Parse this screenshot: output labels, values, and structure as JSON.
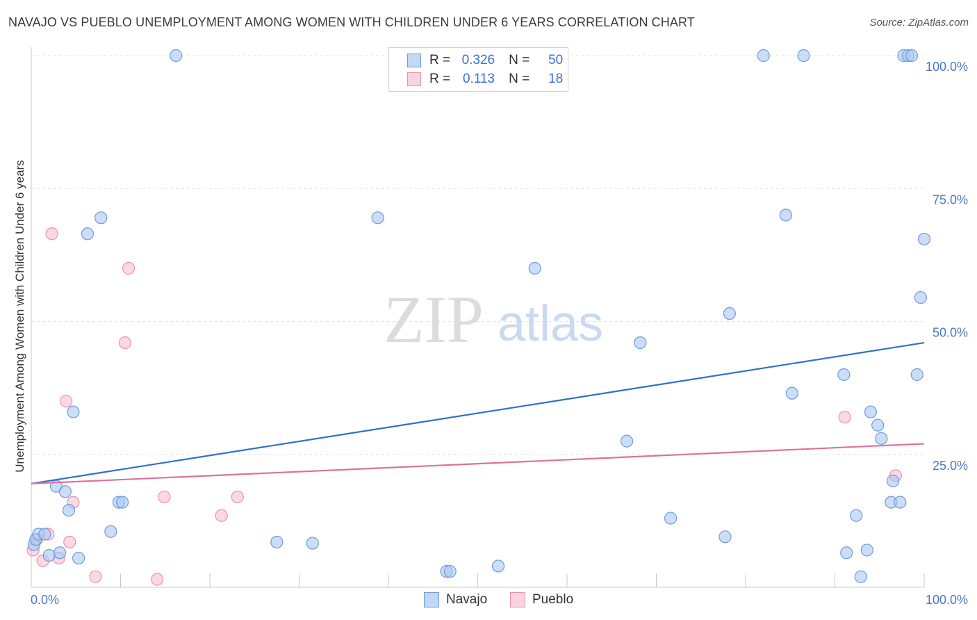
{
  "title": "NAVAJO VS PUEBLO UNEMPLOYMENT AMONG WOMEN WITH CHILDREN UNDER 6 YEARS CORRELATION CHART",
  "source": "Source: ZipAtlas.com",
  "legend": {
    "rows": [
      {
        "r_label": "R =",
        "r_value": "0.326",
        "n_label": "N =",
        "n_value": "50"
      },
      {
        "r_label": "R =",
        "r_value": "0.113",
        "n_label": "N =",
        "n_value": "18"
      }
    ]
  },
  "bottom_legend": {
    "navajo": "Navajo",
    "pueblo": "Pueblo"
  },
  "watermark": {
    "zip": "ZIP",
    "atlas": "atlas"
  },
  "colors": {
    "navajo_fill": "#aac8f0",
    "navajo_stroke": "#6b9be0",
    "navajo_line": "#2f6fd0",
    "pueblo_fill": "#f8c0d0",
    "pueblo_stroke": "#ec90ac",
    "pueblo_line": "#e0709a",
    "grid": "#e3e3e3",
    "axis": "#c8c8c8"
  },
  "chart_data": {
    "type": "scatter",
    "title": "NAVAJO VS PUEBLO UNEMPLOYMENT AMONG WOMEN WITH CHILDREN UNDER 6 YEARS CORRELATION CHART",
    "xlabel": "",
    "ylabel": "Unemployment Among Women with Children Under 6 years",
    "xlim": [
      0,
      100
    ],
    "ylim": [
      0,
      100
    ],
    "x_tick_labels": [
      "0.0%",
      "100.0%"
    ],
    "y_ticks": [
      25,
      50,
      75,
      100
    ],
    "y_tick_labels": [
      "25.0%",
      "50.0%",
      "75.0%",
      "100.0%"
    ],
    "series": [
      {
        "name": "Navajo",
        "R": 0.326,
        "N": 50,
        "trend": {
          "x": [
            0,
            100
          ],
          "y": [
            19.5,
            46
          ]
        },
        "points": [
          [
            0.3,
            8
          ],
          [
            0.5,
            9
          ],
          [
            0.8,
            10
          ],
          [
            1.5,
            10
          ],
          [
            2.0,
            6
          ],
          [
            2.8,
            19
          ],
          [
            3.2,
            6.5
          ],
          [
            3.8,
            18
          ],
          [
            4.2,
            14.5
          ],
          [
            4.7,
            33
          ],
          [
            5.3,
            5.5
          ],
          [
            6.3,
            66.5
          ],
          [
            7.8,
            69.5
          ],
          [
            8.9,
            10.5
          ],
          [
            9.8,
            16
          ],
          [
            10.2,
            16
          ],
          [
            16.2,
            100
          ],
          [
            27.5,
            8.5
          ],
          [
            31.5,
            8.3
          ],
          [
            38.8,
            69.5
          ],
          [
            46.5,
            3
          ],
          [
            46.9,
            3
          ],
          [
            52.3,
            4
          ],
          [
            56.4,
            60
          ],
          [
            66.7,
            27.5
          ],
          [
            68.2,
            46
          ],
          [
            71.6,
            13
          ],
          [
            77.7,
            9.5
          ],
          [
            78.2,
            51.5
          ],
          [
            82.0,
            100
          ],
          [
            84.5,
            70
          ],
          [
            85.2,
            36.5
          ],
          [
            86.5,
            100
          ],
          [
            91.0,
            40
          ],
          [
            91.3,
            6.5
          ],
          [
            92.4,
            13.5
          ],
          [
            92.9,
            2
          ],
          [
            93.6,
            7
          ],
          [
            94.0,
            33
          ],
          [
            94.8,
            30.5
          ],
          [
            95.2,
            28
          ],
          [
            96.3,
            16
          ],
          [
            96.5,
            20
          ],
          [
            97.3,
            16
          ],
          [
            97.7,
            100
          ],
          [
            98.2,
            100
          ],
          [
            98.6,
            100
          ],
          [
            99.2,
            40
          ],
          [
            99.6,
            54.5
          ],
          [
            100.0,
            65.5
          ]
        ]
      },
      {
        "name": "Pueblo",
        "R": 0.113,
        "N": 18,
        "trend": {
          "x": [
            0,
            100
          ],
          "y": [
            19.5,
            27
          ]
        },
        "points": [
          [
            0.2,
            7
          ],
          [
            0.6,
            9
          ],
          [
            1.3,
            5
          ],
          [
            1.9,
            10
          ],
          [
            2.3,
            66.5
          ],
          [
            3.1,
            5.5
          ],
          [
            3.9,
            35
          ],
          [
            4.3,
            8.5
          ],
          [
            4.7,
            16
          ],
          [
            7.2,
            2
          ],
          [
            10.5,
            46
          ],
          [
            10.9,
            60
          ],
          [
            14.1,
            1.5
          ],
          [
            14.9,
            17
          ],
          [
            21.3,
            13.5
          ],
          [
            23.1,
            17
          ],
          [
            91.1,
            32
          ],
          [
            96.8,
            21
          ]
        ]
      }
    ]
  }
}
